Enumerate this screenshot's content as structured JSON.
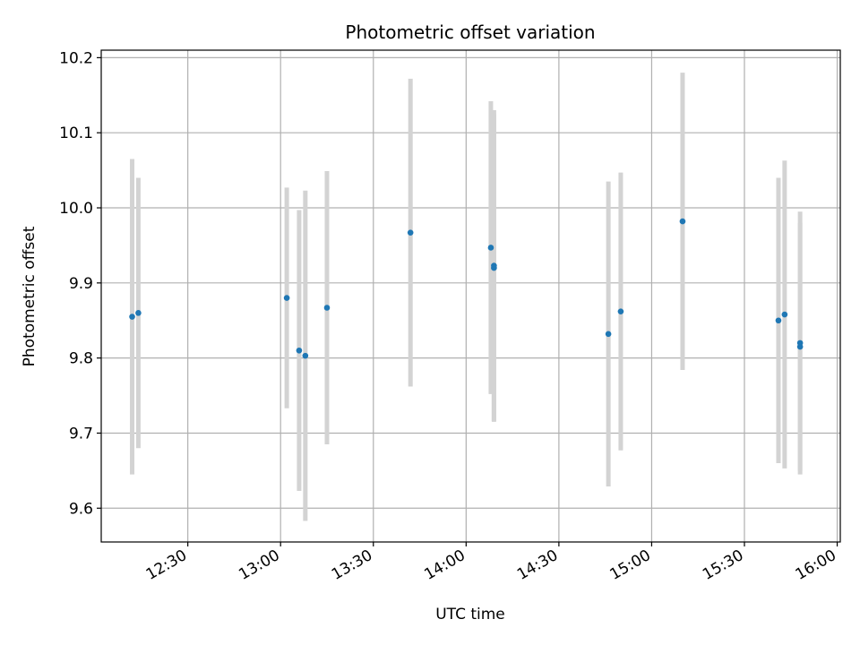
{
  "chart_data": {
    "type": "scatter",
    "title": "Photometric offset variation",
    "xlabel": "UTC time",
    "ylabel": "Photometric offset",
    "x_ticks": [
      "12:30",
      "13:00",
      "13:30",
      "14:00",
      "14:30",
      "15:00",
      "15:30",
      "16:00"
    ],
    "y_ticks": [
      "9.6",
      "9.7",
      "9.8",
      "9.9",
      "10.0",
      "10.1",
      "10.2"
    ],
    "xlim": [
      "12:02",
      "16:01"
    ],
    "ylim": [
      9.555,
      10.21
    ],
    "grid": true,
    "colors": {
      "points": "#1f77b4",
      "errorbars": "#d3d3d3",
      "grid": "#b0b0b0"
    },
    "points": [
      {
        "x": "12:12",
        "y": 9.855,
        "err": 0.21
      },
      {
        "x": "12:14",
        "y": 9.86,
        "err": 0.18
      },
      {
        "x": "13:02",
        "y": 9.88,
        "err": 0.147
      },
      {
        "x": "13:06",
        "y": 9.81,
        "err": 0.187
      },
      {
        "x": "13:08",
        "y": 9.803,
        "err": 0.22
      },
      {
        "x": "13:15",
        "y": 9.867,
        "err": 0.182
      },
      {
        "x": "13:42",
        "y": 9.967,
        "err": 0.205
      },
      {
        "x": "14:08",
        "y": 9.947,
        "err": 0.195
      },
      {
        "x": "14:09",
        "y": 9.92,
        "err": 0.205
      },
      {
        "x": "14:09",
        "y": 9.923,
        "err": 0.207
      },
      {
        "x": "14:46",
        "y": 9.832,
        "err": 0.203
      },
      {
        "x": "14:50",
        "y": 9.862,
        "err": 0.185
      },
      {
        "x": "15:10",
        "y": 9.982,
        "err": 0.198
      },
      {
        "x": "15:41",
        "y": 9.85,
        "err": 0.19
      },
      {
        "x": "15:43",
        "y": 9.858,
        "err": 0.205
      },
      {
        "x": "15:48",
        "y": 9.815,
        "err": 0.165
      },
      {
        "x": "15:48",
        "y": 9.82,
        "err": 0.175
      }
    ]
  }
}
